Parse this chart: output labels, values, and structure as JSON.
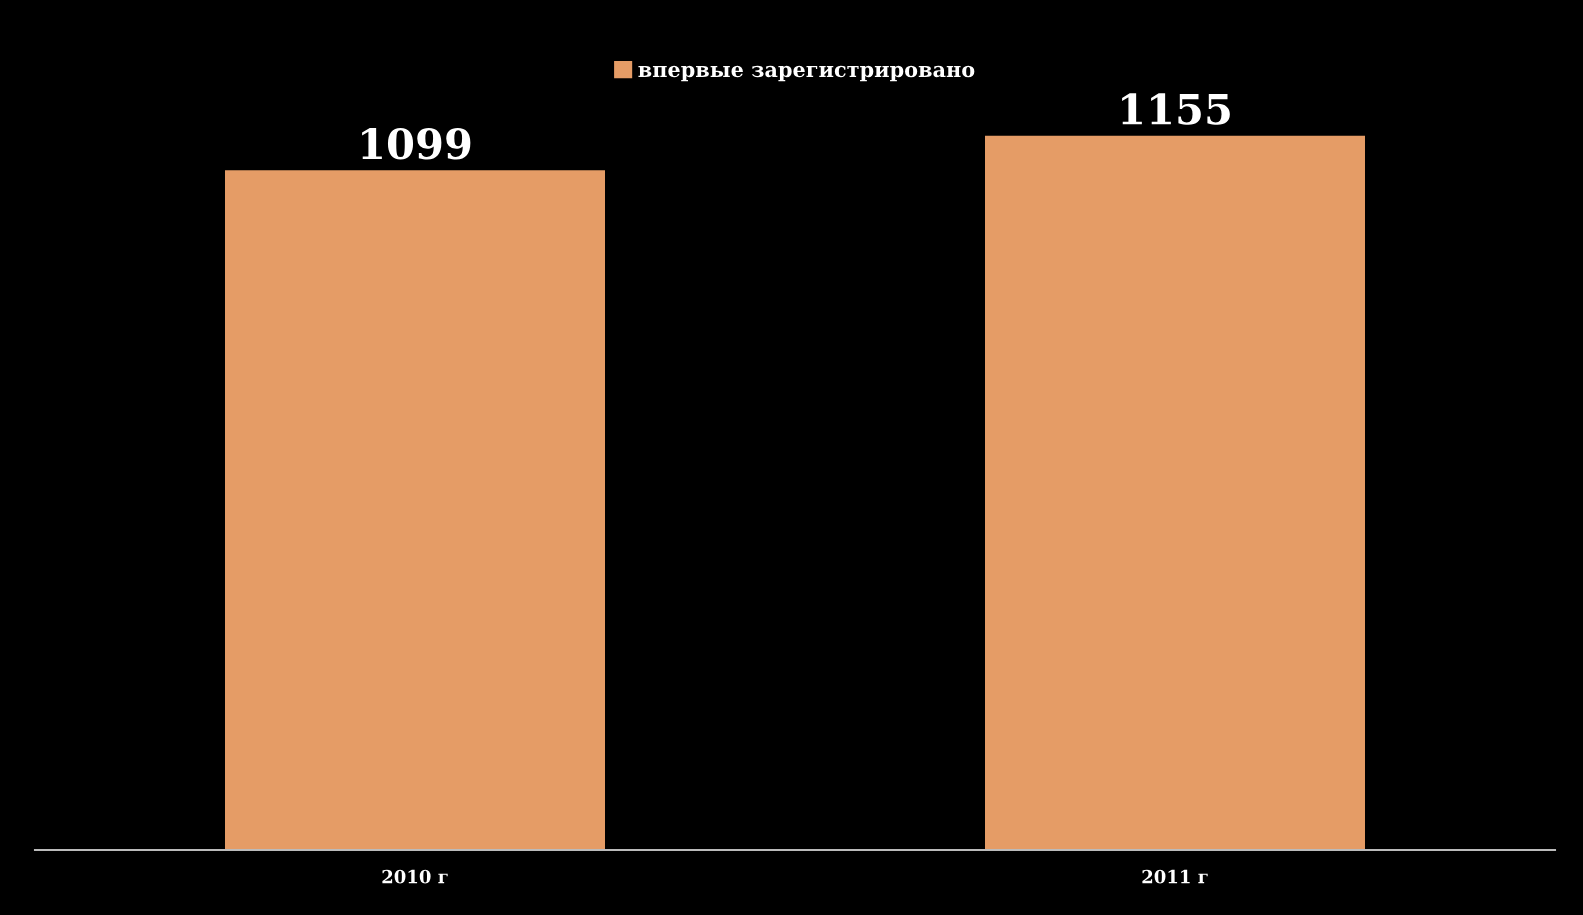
{
  "chart_data": {
    "type": "bar",
    "categories": [
      "2010 г",
      "2011 г"
    ],
    "series": [
      {
        "name": "впервые зарегистрировано",
        "color": "#e59c66",
        "values": [
          1099,
          1155
        ]
      }
    ],
    "tick_labels": "x",
    "data_labels": true,
    "legend": "top",
    "grid": false
  }
}
